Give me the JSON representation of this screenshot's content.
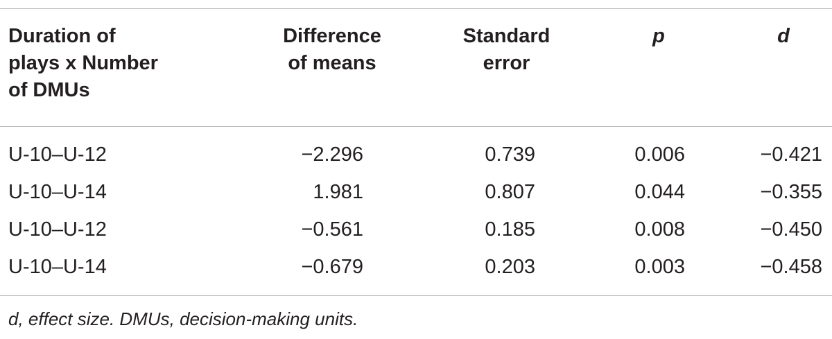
{
  "table": {
    "headers": [
      "Duration of\nplays x Number\nof DMUs",
      "Difference\nof means",
      "Standard\nerror",
      "p",
      "d"
    ],
    "rows": [
      [
        "U-10–U-12",
        "−2.296",
        "0.739",
        "0.006",
        "−0.421"
      ],
      [
        "U-10–U-14",
        "1.981",
        "0.807",
        "0.044",
        "−0.355"
      ],
      [
        "U-10–U-12",
        "−0.561",
        "0.185",
        "0.008",
        "−0.450"
      ],
      [
        "U-10–U-14",
        "−0.679",
        "0.203",
        "0.003",
        "−0.458"
      ]
    ],
    "footnote": "d, effect size. DMUs, decision-making units."
  }
}
